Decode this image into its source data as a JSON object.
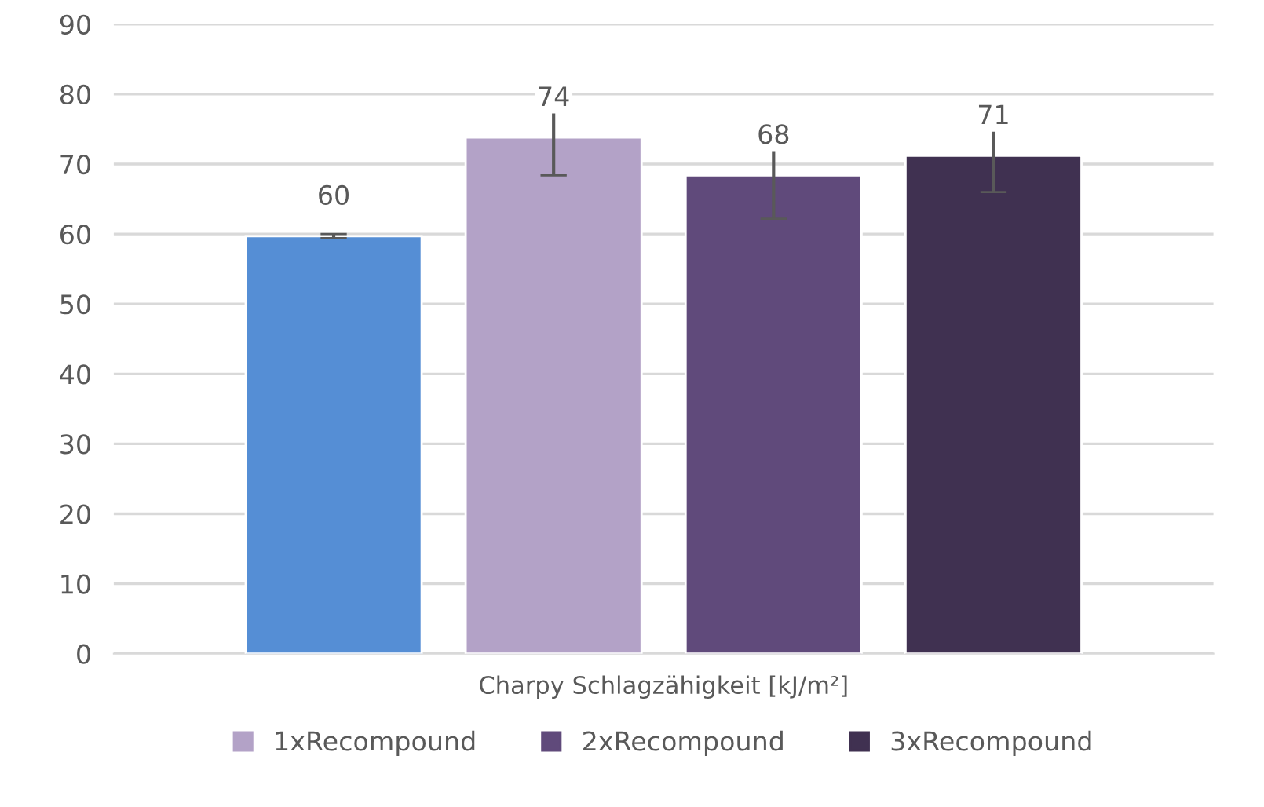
{
  "chart_data": {
    "type": "bar",
    "categories": [
      "Charpy Schlagzähigkeit [kJ/m²]"
    ],
    "series": [
      {
        "color": "#558ed5",
        "values": [
          59.7
        ],
        "errors": [
          0.3
        ],
        "value_labels": [
          "60"
        ]
      },
      {
        "name": "1xRecompound",
        "color": "#b3a2c7",
        "values": [
          73.8
        ],
        "errors": [
          5.4
        ],
        "value_labels": [
          "74"
        ]
      },
      {
        "name": "2xRecompound",
        "color": "#604a7b",
        "values": [
          68.4
        ],
        "errors": [
          6.2
        ],
        "value_labels": [
          "68"
        ]
      },
      {
        "name": "3xRecompound",
        "color": "#403151",
        "values": [
          71.2
        ],
        "errors": [
          5.2
        ],
        "value_labels": [
          "71"
        ]
      }
    ],
    "ylim": [
      0,
      90
    ],
    "yticks": [
      0,
      10,
      20,
      30,
      40,
      50,
      60,
      70,
      80,
      90
    ],
    "grid": "y",
    "legend": "bottom"
  }
}
